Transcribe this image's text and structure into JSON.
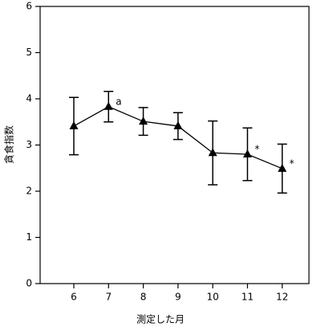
{
  "chart_data": {
    "type": "line",
    "x_label": "測定した月",
    "y_label": "貪食指数",
    "x": [
      6,
      7,
      8,
      9,
      10,
      11,
      12
    ],
    "values": [
      3.41,
      3.83,
      3.51,
      3.41,
      2.83,
      2.8,
      2.49
    ],
    "errors": [
      0.62,
      0.33,
      0.3,
      0.29,
      0.69,
      0.57,
      0.53
    ],
    "color": "#000000",
    "xlim": [
      5.03,
      12.77
    ],
    "xticks": [
      6,
      7,
      8,
      9,
      10,
      11,
      12
    ],
    "ylim": [
      0,
      6
    ],
    "yticks": [
      0,
      1,
      2,
      3,
      4,
      5,
      6
    ],
    "annotations": [
      {
        "text": "a",
        "index": 1
      },
      {
        "text": "*",
        "index": 5
      },
      {
        "text": "*",
        "index": 6
      }
    ]
  }
}
